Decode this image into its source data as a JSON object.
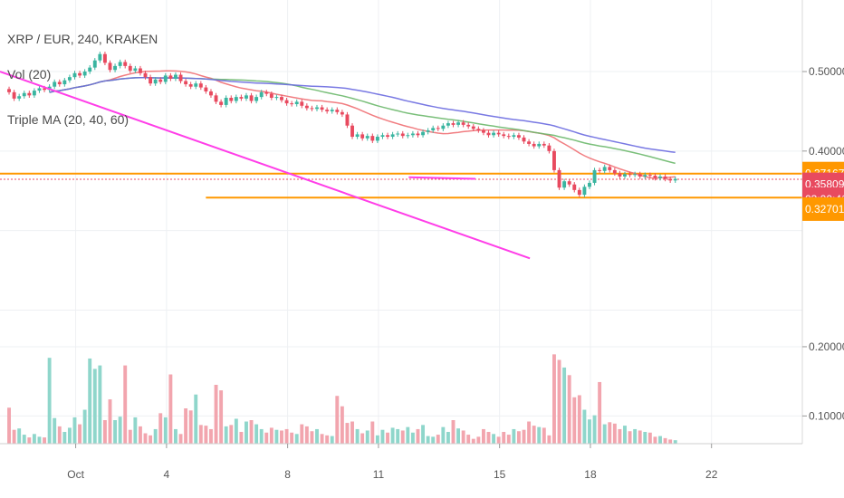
{
  "chart_data": {
    "type": "candlestick",
    "pair_label": "XRP / EUR, 240, KRAKEN",
    "volume_label": "Vol (20)",
    "ma_label": "Triple MA (20, 40, 60)",
    "price_axis": {
      "ticks": [
        "0.50000",
        "0.40000"
      ],
      "range": [
        0.18,
        0.59
      ]
    },
    "volume_axis": {
      "ticks": [
        "0.20000",
        "0.10000"
      ],
      "range": [
        0.06,
        0.23
      ]
    },
    "time_axis": {
      "ticks": [
        "Oct",
        "4",
        "8",
        "11",
        "15",
        "18",
        "22"
      ],
      "days": [
        1,
        4,
        8,
        11,
        15,
        18,
        22
      ],
      "start_day": -1.5,
      "end_day": 25.0
    },
    "price_tags": [
      {
        "text": "0.37167",
        "value": 0.37167,
        "color": "#ff9800"
      },
      {
        "text": "0.35809",
        "value": 0.35809,
        "color": "#e84a5f"
      },
      {
        "text": "03:00:41",
        "value": 0.3395,
        "color": "#e84a5f"
      },
      {
        "text": "0.32701",
        "value": 0.32701,
        "color": "#ff9800"
      }
    ],
    "current_price": 0.3645,
    "horizontal_lines": [
      {
        "value": 0.37167,
        "from_day": -1.5,
        "to_day": 25.0,
        "color": "#ff9800"
      },
      {
        "value": 0.3415,
        "from_day": 5.3,
        "to_day": 25.0,
        "color": "#ff9800"
      }
    ],
    "trend_lines": [
      {
        "from": [
          -1.5,
          0.5
        ],
        "to": [
          16.0,
          0.265
        ],
        "color": "#ff3ee8"
      },
      {
        "from": [
          12.0,
          0.367
        ],
        "to": [
          14.2,
          0.365
        ],
        "color": "#ff3ee8"
      }
    ],
    "colors": {
      "up": "#3ab5a0",
      "down": "#e84a5f",
      "vol_up": "#8fd6cb",
      "vol_down": "#f2a5ae",
      "ma20": "#ef6f73",
      "ma40": "#6cb86c",
      "ma60": "#6a6ae0"
    },
    "candles": {
      "start_day": -1.2,
      "step": 0.1667,
      "close": [
        0.474,
        0.466,
        0.469,
        0.473,
        0.47,
        0.476,
        0.479,
        0.477,
        0.481,
        0.487,
        0.484,
        0.489,
        0.493,
        0.498,
        0.495,
        0.5,
        0.505,
        0.514,
        0.522,
        0.511,
        0.502,
        0.507,
        0.512,
        0.507,
        0.501,
        0.504,
        0.498,
        0.493,
        0.485,
        0.49,
        0.487,
        0.495,
        0.491,
        0.496,
        0.488,
        0.484,
        0.481,
        0.485,
        0.48,
        0.475,
        0.47,
        0.462,
        0.458,
        0.467,
        0.463,
        0.468,
        0.466,
        0.47,
        0.463,
        0.468,
        0.474,
        0.472,
        0.467,
        0.468,
        0.464,
        0.46,
        0.459,
        0.462,
        0.457,
        0.454,
        0.453,
        0.455,
        0.452,
        0.45,
        0.452,
        0.449,
        0.446,
        0.432,
        0.418,
        0.421,
        0.416,
        0.419,
        0.413,
        0.418,
        0.42,
        0.418,
        0.421,
        0.422,
        0.419,
        0.42,
        0.422,
        0.42,
        0.424,
        0.426,
        0.429,
        0.428,
        0.432,
        0.435,
        0.433,
        0.436,
        0.433,
        0.431,
        0.428,
        0.426,
        0.423,
        0.42,
        0.423,
        0.421,
        0.419,
        0.418,
        0.42,
        0.417,
        0.412,
        0.409,
        0.406,
        0.409,
        0.407,
        0.4,
        0.376,
        0.354,
        0.362,
        0.358,
        0.351,
        0.345,
        0.355,
        0.36,
        0.376,
        0.375,
        0.38,
        0.376,
        0.372,
        0.368,
        0.371,
        0.37,
        0.371,
        0.368,
        0.37,
        0.369,
        0.366,
        0.368,
        0.365,
        0.363,
        0.365
      ],
      "volume": [
        0.112,
        0.08,
        0.082,
        0.073,
        0.069,
        0.074,
        0.07,
        0.069,
        0.184,
        0.097,
        0.085,
        0.077,
        0.083,
        0.098,
        0.088,
        0.109,
        0.183,
        0.168,
        0.173,
        0.094,
        0.124,
        0.094,
        0.099,
        0.173,
        0.08,
        0.098,
        0.085,
        0.075,
        0.072,
        0.081,
        0.104,
        0.098,
        0.16,
        0.081,
        0.074,
        0.111,
        0.108,
        0.131,
        0.087,
        0.086,
        0.081,
        0.145,
        0.137,
        0.085,
        0.087,
        0.096,
        0.077,
        0.092,
        0.094,
        0.088,
        0.081,
        0.076,
        0.083,
        0.08,
        0.079,
        0.081,
        0.076,
        0.074,
        0.088,
        0.085,
        0.078,
        0.081,
        0.074,
        0.072,
        0.071,
        0.129,
        0.114,
        0.09,
        0.092,
        0.081,
        0.075,
        0.079,
        0.092,
        0.072,
        0.08,
        0.076,
        0.083,
        0.081,
        0.079,
        0.084,
        0.076,
        0.081,
        0.087,
        0.071,
        0.07,
        0.073,
        0.084,
        0.077,
        0.094,
        0.082,
        0.079,
        0.073,
        0.067,
        0.07,
        0.081,
        0.077,
        0.074,
        0.07,
        0.077,
        0.073,
        0.081,
        0.078,
        0.08,
        0.092,
        0.086,
        0.084,
        0.083,
        0.072,
        0.189,
        0.181,
        0.17,
        0.159,
        0.127,
        0.13,
        0.109,
        0.095,
        0.101,
        0.149,
        0.088,
        0.091,
        0.089,
        0.081,
        0.086,
        0.078,
        0.081,
        0.079,
        0.077,
        0.076,
        0.07,
        0.071,
        0.068,
        0.066,
        0.065
      ]
    }
  }
}
